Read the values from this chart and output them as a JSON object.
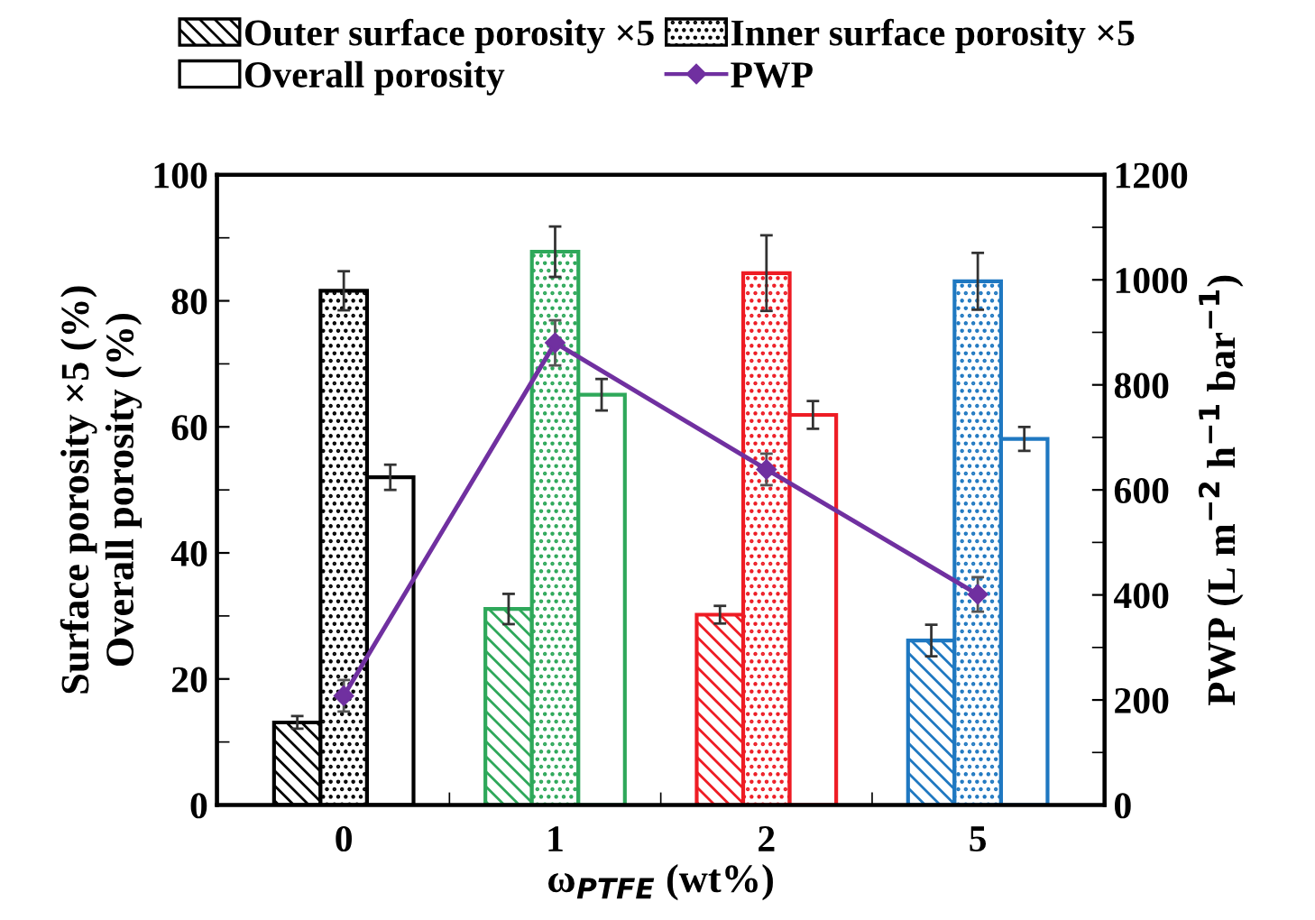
{
  "chart_data": {
    "type": "bar",
    "categories": [
      "0",
      "1",
      "2",
      "5"
    ],
    "xlabel": "ω$_{PTFE}$ (wt%)",
    "ylabel": "Surface porosity ×5 (%)\nOverall porosity (%)",
    "y2label": "PWP (L m$^{−2}$ h$^{−1}$ bar$^{−1}$)",
    "ylim": [
      0,
      100
    ],
    "yticks": [
      0,
      20,
      40,
      60,
      80,
      100
    ],
    "y2lim": [
      0,
      1200
    ],
    "y2ticks": [
      0,
      200,
      400,
      600,
      800,
      1000,
      1200
    ],
    "grid": false,
    "legend": "top",
    "series": [
      {
        "name": "Outer surface porosity ×5",
        "color": "#000000",
        "colors": [
          "#000000",
          "#2ea85a",
          "#ee1c24",
          "#1f78c1"
        ],
        "values": [
          13.1,
          31.1,
          30.2,
          26.1
        ],
        "errors": [
          1,
          2.4,
          1.4,
          2.5
        ]
      },
      {
        "name": "Inner surface porosity ×5",
        "color": "#000000",
        "colors": [
          "#000000",
          "#2ea85a",
          "#ee1c24",
          "#1f78c1"
        ],
        "values": [
          81.6,
          87.8,
          84.4,
          83.1
        ],
        "errors": [
          3.1,
          4,
          6,
          4.5
        ]
      },
      {
        "name": "Overall porosity",
        "color": "#000000",
        "colors": [
          "#000000",
          "#2ea85a",
          "#ee1c24",
          "#1f78c1"
        ],
        "values": [
          52,
          65.1,
          61.9,
          58.1
        ],
        "errors": [
          2,
          2.5,
          2.2,
          1.9
        ]
      },
      {
        "name": "PWP",
        "type": "line",
        "axis": "y2",
        "color": "#7030a0",
        "marker": "diamond",
        "line_style": "solid",
        "values": [
          208,
          880,
          639,
          401
        ],
        "errors": [
          30,
          43,
          30,
          33
        ]
      }
    ]
  }
}
